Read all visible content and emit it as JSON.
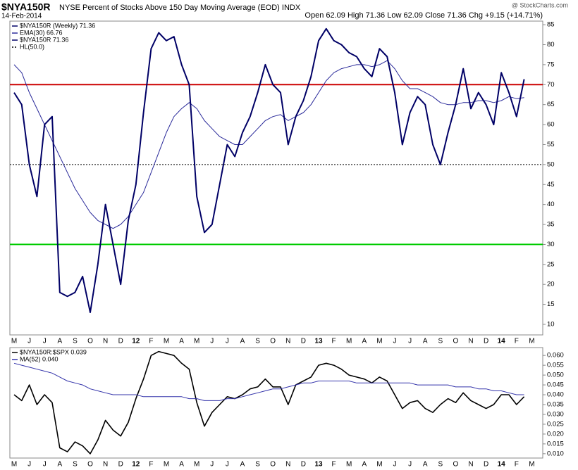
{
  "chart_data": [
    {
      "type": "line",
      "symbol": "$NYA150R",
      "title": "NYSE Percent of Stocks Above 150 Day Moving Average (EOD) INDX",
      "date": "14-Feb-2014",
      "source": "@ StockCharts.com",
      "quote": "Open 62.09  High 71.36  Low 62.09  Close 71.36  Chg +9.15 (+14.71%)",
      "price_label": "$NYA150R (Weekly) 71.36",
      "categories": [
        "M",
        null,
        "J",
        null,
        "J",
        null,
        "A",
        null,
        "S",
        null,
        "O",
        null,
        "N",
        null,
        "D",
        null,
        "12",
        null,
        "F",
        null,
        "M",
        null,
        "A",
        null,
        "M",
        null,
        "J",
        null,
        "J",
        null,
        "A",
        null,
        "S",
        null,
        "O",
        null,
        "N",
        null,
        "D",
        null,
        "13",
        null,
        "F",
        null,
        "M",
        null,
        "A",
        null,
        "M",
        null,
        "J",
        null,
        "J",
        null,
        "A",
        null,
        "S",
        null,
        "O",
        null,
        "N",
        null,
        "D",
        null,
        "14",
        null,
        "F",
        null,
        "M"
      ],
      "series": [
        {
          "name": "EMA(30) 66.76",
          "color": "#2a2a9a",
          "width": 1,
          "values": [
            75,
            73,
            68,
            64,
            60,
            56,
            52,
            48,
            44,
            41,
            38,
            36,
            35,
            34,
            35,
            37,
            40,
            43,
            48,
            53,
            58,
            62,
            64,
            65.5,
            64,
            61,
            59,
            57,
            56,
            55,
            55,
            57,
            59,
            61,
            62,
            62.5,
            61,
            62,
            63,
            65,
            68,
            71,
            73,
            74,
            74.5,
            75,
            75,
            74.5,
            75,
            76,
            74,
            71,
            69,
            69,
            68,
            67,
            65.5,
            65,
            65,
            65.5,
            65.5,
            66,
            66,
            65.5,
            66,
            67,
            66.5,
            66.76,
            null
          ]
        },
        {
          "name": "$NYA150R 71.36",
          "color": "#000066",
          "width": 2,
          "values": [
            68,
            65,
            50,
            42,
            60,
            62,
            18,
            17,
            18,
            22,
            13,
            25,
            40,
            30,
            20,
            36,
            45,
            63,
            79,
            83,
            81,
            82,
            75,
            70,
            42,
            33,
            35,
            45,
            55,
            52,
            58,
            62,
            68,
            75,
            70,
            68,
            55,
            62,
            66,
            72,
            81,
            84,
            81,
            80,
            78,
            77,
            74,
            72,
            79,
            77,
            68,
            55,
            63,
            67,
            65,
            55,
            50,
            58,
            65,
            74,
            64,
            68,
            65,
            60,
            73,
            68,
            62,
            71.36,
            null
          ]
        }
      ],
      "hlines": [
        {
          "name": "HL(50.0)",
          "value": 50,
          "color": "#000000",
          "style": "dotted"
        },
        {
          "value": 70,
          "color": "#cc0000",
          "style": "solid"
        },
        {
          "value": 30,
          "color": "#00cc00",
          "style": "solid"
        }
      ],
      "ylim": [
        7.36,
        85.9
      ],
      "yticks": [
        10,
        15,
        20,
        25,
        30,
        35,
        40,
        45,
        50,
        55,
        60,
        65,
        70,
        75,
        80,
        85
      ]
    },
    {
      "type": "line",
      "categories": [
        "M",
        null,
        "J",
        null,
        "J",
        null,
        "A",
        null,
        "S",
        null,
        "O",
        null,
        "N",
        null,
        "D",
        null,
        "12",
        null,
        "F",
        null,
        "M",
        null,
        "A",
        null,
        "M",
        null,
        "J",
        null,
        "J",
        null,
        "A",
        null,
        "S",
        null,
        "O",
        null,
        "N",
        null,
        "D",
        null,
        "13",
        null,
        "F",
        null,
        "M",
        null,
        "A",
        null,
        "M",
        null,
        "J",
        null,
        "J",
        null,
        "A",
        null,
        "S",
        null,
        "O",
        null,
        "N",
        null,
        "D",
        null,
        "14",
        null,
        "F",
        null,
        "M"
      ],
      "series": [
        {
          "name": "$NYA150R:$SPX 0.039",
          "color": "#000000",
          "width": 1.6,
          "values": [
            0.04,
            0.037,
            0.045,
            0.035,
            0.04,
            0.036,
            0.013,
            0.011,
            0.016,
            0.014,
            0.01,
            0.017,
            0.027,
            0.022,
            0.019,
            0.026,
            0.038,
            0.048,
            0.06,
            0.062,
            0.061,
            0.06,
            0.056,
            0.053,
            0.036,
            0.024,
            0.031,
            0.035,
            0.039,
            0.038,
            0.04,
            0.043,
            0.044,
            0.048,
            0.044,
            0.044,
            0.035,
            0.045,
            0.047,
            0.049,
            0.055,
            0.056,
            0.055,
            0.053,
            0.05,
            0.049,
            0.048,
            0.046,
            0.049,
            0.047,
            0.04,
            0.033,
            0.036,
            0.037,
            0.033,
            0.031,
            0.035,
            0.038,
            0.036,
            0.041,
            0.037,
            0.035,
            0.033,
            0.035,
            0.04,
            0.04,
            0.035,
            0.039,
            null
          ]
        },
        {
          "name": "MA(52) 0.040",
          "color": "#3333aa",
          "width": 1,
          "values": [
            0.056,
            0.055,
            0.054,
            0.053,
            0.052,
            0.051,
            0.049,
            0.047,
            0.046,
            0.045,
            0.043,
            0.042,
            0.041,
            0.04,
            0.04,
            0.04,
            0.04,
            0.039,
            0.039,
            0.039,
            0.039,
            0.039,
            0.039,
            0.038,
            0.038,
            0.037,
            0.037,
            0.037,
            0.038,
            0.038,
            0.039,
            0.04,
            0.041,
            0.042,
            0.043,
            0.043,
            0.044,
            0.045,
            0.046,
            0.046,
            0.047,
            0.047,
            0.047,
            0.047,
            0.047,
            0.046,
            0.046,
            0.046,
            0.046,
            0.046,
            0.046,
            0.046,
            0.046,
            0.045,
            0.045,
            0.045,
            0.045,
            0.045,
            0.044,
            0.044,
            0.044,
            0.043,
            0.043,
            0.042,
            0.042,
            0.041,
            0.04,
            0.04,
            null
          ]
        }
      ],
      "ylim": [
        0.0078,
        0.064
      ],
      "yticks": [
        {
          "value": 0.01,
          "label": "0.010"
        },
        {
          "value": 0.015,
          "label": "0.015"
        },
        {
          "value": 0.02,
          "label": "0.020"
        },
        {
          "value": 0.025,
          "label": "0.025"
        },
        {
          "value": 0.03,
          "label": "0.030"
        },
        {
          "value": 0.035,
          "label": "0.035"
        },
        {
          "value": 0.04,
          "label": "0.040"
        },
        {
          "value": 0.045,
          "label": "0.045"
        },
        {
          "value": 0.05,
          "label": "0.050"
        },
        {
          "value": 0.055,
          "label": "0.055"
        },
        {
          "value": 0.06,
          "label": "0.060"
        }
      ]
    }
  ]
}
